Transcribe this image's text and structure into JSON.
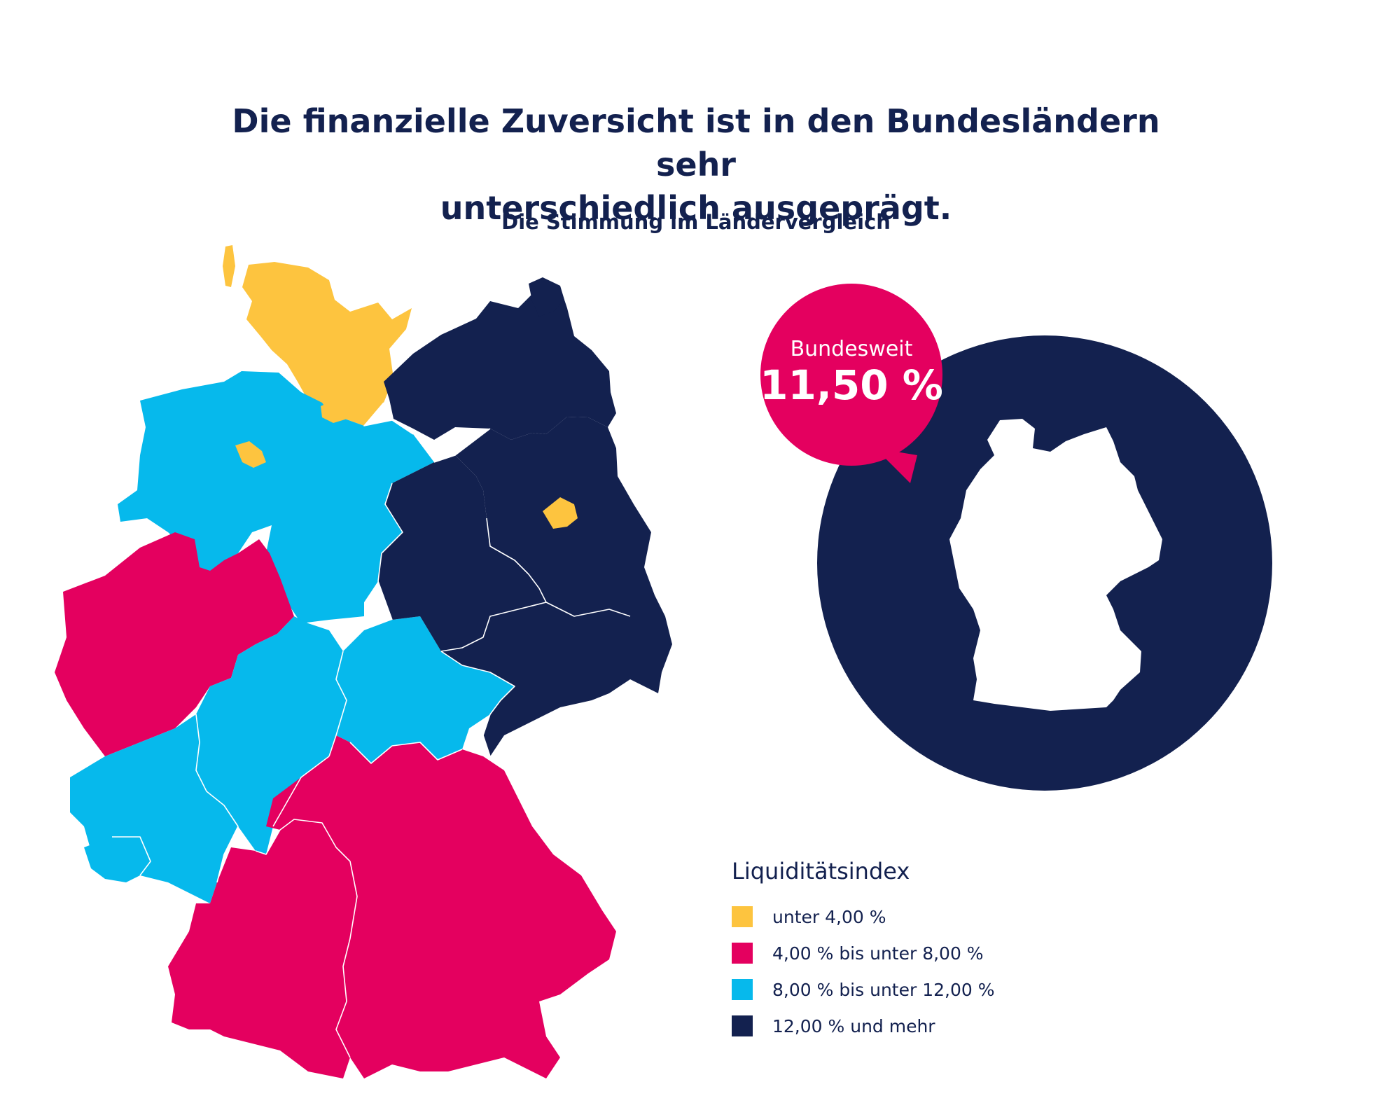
{
  "header": {
    "title_line1": "Die finanzielle Zuversicht ist in den Bundesländern sehr",
    "title_line2": "unterschiedlich ausgeprägt.",
    "subtitle": "Die Stimmung im Ländervergleich"
  },
  "national": {
    "label": "Bundesweit",
    "value": "11,50 %",
    "bubble_color": "#e4005f",
    "circle_color": "#13214f"
  },
  "legend": {
    "title": "Liquiditätsindex",
    "items": [
      {
        "label": "unter 4,00 %",
        "color": "#fdc43f"
      },
      {
        "label": "4,00 % bis unter 8,00 %",
        "color": "#e4005f"
      },
      {
        "label": "8,00 % bis unter 12,00 %",
        "color": "#06b9ec"
      },
      {
        "label": "12,00 % und mehr",
        "color": "#13214f"
      }
    ]
  },
  "map_data": {
    "categories": [
      "unter 4,00 %",
      "4,00 % bis unter 8,00 %",
      "8,00 % bis unter 12,00 %",
      "12,00 % und mehr"
    ],
    "regions": [
      {
        "state": "Schleswig-Holstein",
        "category": 0
      },
      {
        "state": "Hamburg",
        "category": 0
      },
      {
        "state": "Bremen",
        "category": 0
      },
      {
        "state": "Berlin",
        "category": 0
      },
      {
        "state": "Nordrhein-Westfalen",
        "category": 1
      },
      {
        "state": "Baden-Württemberg",
        "category": 1
      },
      {
        "state": "Bayern",
        "category": 1
      },
      {
        "state": "Niedersachsen",
        "category": 2
      },
      {
        "state": "Hessen",
        "category": 2
      },
      {
        "state": "Thüringen",
        "category": 2
      },
      {
        "state": "Rheinland-Pfalz",
        "category": 2
      },
      {
        "state": "Saarland",
        "category": 2
      },
      {
        "state": "Mecklenburg-Vorpommern",
        "category": 3
      },
      {
        "state": "Brandenburg",
        "category": 3
      },
      {
        "state": "Sachsen-Anhalt",
        "category": 3
      },
      {
        "state": "Sachsen",
        "category": 3
      }
    ]
  }
}
